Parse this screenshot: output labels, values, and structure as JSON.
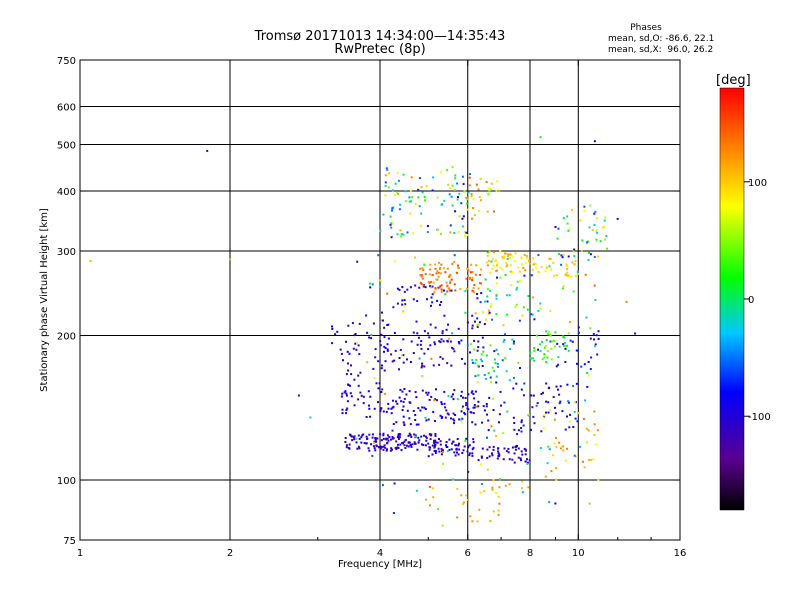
{
  "chart_data": {
    "type": "scatter",
    "title": "Tromsø 20171013 14:34:00—14:35:43",
    "subtitle": "RwPretec (8p)",
    "stats": {
      "heading": "Phases",
      "line_o": "mean, sd,O: -86.6, 22.1",
      "line_x": "mean, sd,X:  96.0, 26.2"
    },
    "xlabel": "Frequency [MHz]",
    "ylabel": "Stationary phase Virtual Height [km]",
    "x_scale": "log",
    "y_scale": "log",
    "xlim": [
      1,
      16
    ],
    "ylim": [
      75,
      750
    ],
    "x_ticks": [
      {
        "value": 1,
        "label": "1"
      },
      {
        "value": 2,
        "label": "2"
      },
      {
        "value": 4,
        "label": "4"
      },
      {
        "value": 6,
        "label": "6"
      },
      {
        "value": 8,
        "label": "8"
      },
      {
        "value": 10,
        "label": "10"
      },
      {
        "value": 16,
        "label": "16"
      }
    ],
    "y_ticks": [
      {
        "value": 75,
        "label": "75"
      },
      {
        "value": 100,
        "label": "100"
      },
      {
        "value": 200,
        "label": "200"
      },
      {
        "value": 300,
        "label": "300"
      },
      {
        "value": 400,
        "label": "400"
      },
      {
        "value": 500,
        "label": "500"
      },
      {
        "value": 600,
        "label": "600"
      },
      {
        "value": 750,
        "label": "750"
      }
    ],
    "grid_x": [
      2,
      4,
      6,
      8,
      10
    ],
    "grid_y": [
      100,
      200,
      300,
      400,
      500,
      600
    ],
    "colorbar": {
      "label": "[deg]",
      "min": -180,
      "max": 180,
      "ticks": [
        {
          "value": 100,
          "label": "100"
        },
        {
          "value": 0,
          "label": "0"
        },
        {
          "value": -100,
          "label": "-100"
        }
      ]
    },
    "clusters": [
      {
        "f": [
          3.4,
          5.2
        ],
        "h": [
          115,
          125
        ],
        "phase": [
          -120,
          -95
        ],
        "n": 150
      },
      {
        "f": [
          5.0,
          6.2
        ],
        "h": [
          112,
          122
        ],
        "phase": [
          -115,
          -90
        ],
        "n": 60
      },
      {
        "f": [
          6.3,
          8.0
        ],
        "h": [
          108,
          118
        ],
        "phase": [
          -120,
          -95
        ],
        "n": 50
      },
      {
        "f": [
          4.0,
          6.6
        ],
        "h": [
          130,
          155
        ],
        "phase": [
          -115,
          -80
        ],
        "n": 120
      },
      {
        "f": [
          3.3,
          4.0
        ],
        "h": [
          135,
          160
        ],
        "phase": [
          -115,
          -85
        ],
        "n": 35
      },
      {
        "f": [
          6.5,
          10.0
        ],
        "h": [
          125,
          160
        ],
        "phase": [
          -115,
          -70
        ],
        "n": 60
      },
      {
        "f": [
          3.2,
          4.2
        ],
        "h": [
          160,
          215
        ],
        "phase": [
          -120,
          -80
        ],
        "n": 45
      },
      {
        "f": [
          4.0,
          6.5
        ],
        "h": [
          170,
          215
        ],
        "phase": [
          -120,
          -85
        ],
        "n": 90
      },
      {
        "f": [
          6.0,
          7.5
        ],
        "h": [
          160,
          205
        ],
        "phase": [
          -70,
          40
        ],
        "n": 40
      },
      {
        "f": [
          8.0,
          9.6
        ],
        "h": [
          175,
          205
        ],
        "phase": [
          -10,
          60
        ],
        "n": 40
      },
      {
        "f": [
          9.0,
          11.0
        ],
        "h": [
          170,
          210
        ],
        "phase": [
          -110,
          -60
        ],
        "n": 25
      },
      {
        "f": [
          4.3,
          5.4
        ],
        "h": [
          230,
          255
        ],
        "phase": [
          -115,
          -70
        ],
        "n": 30
      },
      {
        "f": [
          4.8,
          6.4
        ],
        "h": [
          245,
          285
        ],
        "phase": [
          110,
          160
        ],
        "n": 90
      },
      {
        "f": [
          6.5,
          8.0
        ],
        "h": [
          270,
          300
        ],
        "phase": [
          70,
          130
        ],
        "n": 50
      },
      {
        "f": [
          8.0,
          10.0
        ],
        "h": [
          265,
          290
        ],
        "phase": [
          70,
          120
        ],
        "n": 35
      },
      {
        "f": [
          9.0,
          11.5
        ],
        "h": [
          290,
          380
        ],
        "phase": [
          -115,
          110
        ],
        "n": 45
      },
      {
        "f": [
          4.0,
          6.2
        ],
        "h": [
          320,
          450
        ],
        "phase": [
          -100,
          130
        ],
        "n": 110
      },
      {
        "f": [
          5.9,
          7.0
        ],
        "h": [
          360,
          430
        ],
        "phase": [
          30,
          150
        ],
        "n": 25
      },
      {
        "f": [
          6.0,
          8.5
        ],
        "h": [
          210,
          270
        ],
        "phase": [
          -110,
          120
        ],
        "n": 55
      },
      {
        "f": [
          8.5,
          11.0
        ],
        "h": [
          100,
          140
        ],
        "phase": [
          70,
          140
        ],
        "n": 35
      },
      {
        "f": [
          5.0,
          8.0
        ],
        "h": [
          80,
          100
        ],
        "phase": [
          90,
          140
        ],
        "n": 30
      },
      {
        "f": [
          3.5,
          11.0
        ],
        "h": [
          85,
          300
        ],
        "phase": [
          -120,
          150
        ],
        "n": 140
      }
    ],
    "outliers": [
      {
        "f": 1.05,
        "h": 286,
        "phase": 110
      },
      {
        "f": 1.8,
        "h": 485,
        "phase": -110
      },
      {
        "f": 2.0,
        "h": 288,
        "phase": 110
      },
      {
        "f": 2.75,
        "h": 150,
        "phase": -110
      },
      {
        "f": 2.9,
        "h": 135,
        "phase": -20
      },
      {
        "f": 3.6,
        "h": 285,
        "phase": -110
      },
      {
        "f": 8.4,
        "h": 518,
        "phase": 20
      },
      {
        "f": 10.8,
        "h": 508,
        "phase": -100
      },
      {
        "f": 13.0,
        "h": 202,
        "phase": -100
      },
      {
        "f": 12.5,
        "h": 235,
        "phase": 130
      },
      {
        "f": 12.0,
        "h": 350,
        "phase": -100
      }
    ]
  }
}
